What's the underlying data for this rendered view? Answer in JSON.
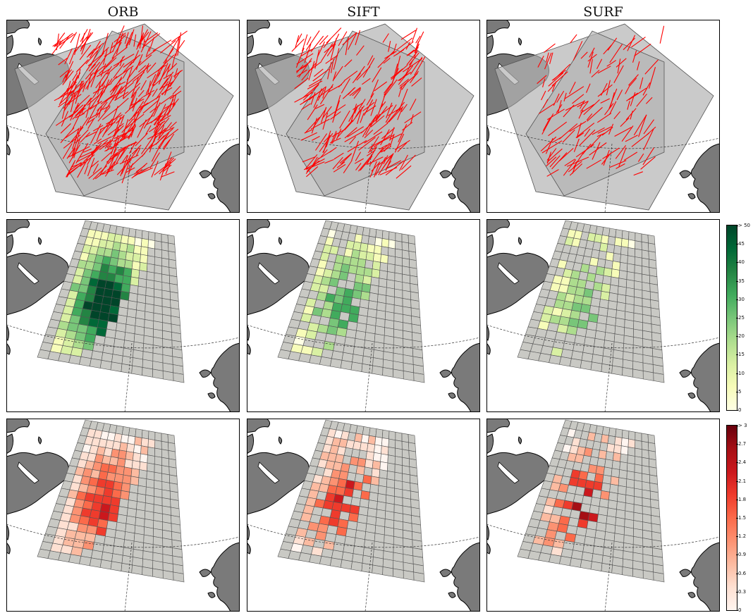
{
  "columns": [
    {
      "name": "ORB",
      "row1": "vectors-orb",
      "density": 0.88,
      "lines": 420,
      "seed": 11
    },
    {
      "name": "SIFT",
      "row1": "vectors-sift",
      "density": 0.55,
      "lines": 260,
      "seed": 29
    },
    {
      "name": "SURF",
      "row1": "vectors-surf",
      "density": 0.4,
      "lines": 150,
      "seed": 47
    }
  ],
  "colorbars": {
    "green": {
      "ticks": [
        "> 50",
        "45",
        "40",
        "35",
        "30",
        "25",
        "20",
        "15",
        "10",
        "5",
        "0"
      ],
      "colors": [
        "#ffffe5",
        "#f7fcb9",
        "#d9f0a3",
        "#addd8e",
        "#78c679",
        "#41ab5d",
        "#238443",
        "#006837",
        "#004529"
      ]
    },
    "red": {
      "ticks": [
        "> 3",
        "2.7",
        "2.4",
        "2.1",
        "1.8",
        "1.5",
        "1.2",
        "0.9",
        "0.6",
        "0.3",
        "0"
      ],
      "colors": [
        "#fff5f0",
        "#fee0d2",
        "#fcbba1",
        "#fc9272",
        "#fb6a4a",
        "#ef3b2c",
        "#cb181d",
        "#a50f15",
        "#67000d"
      ]
    }
  },
  "style": {
    "land": "#7a7a7a",
    "overlay": "#b4b4b4",
    "grid_empty": "#c9c9c4",
    "vector": "#ff0000"
  }
}
